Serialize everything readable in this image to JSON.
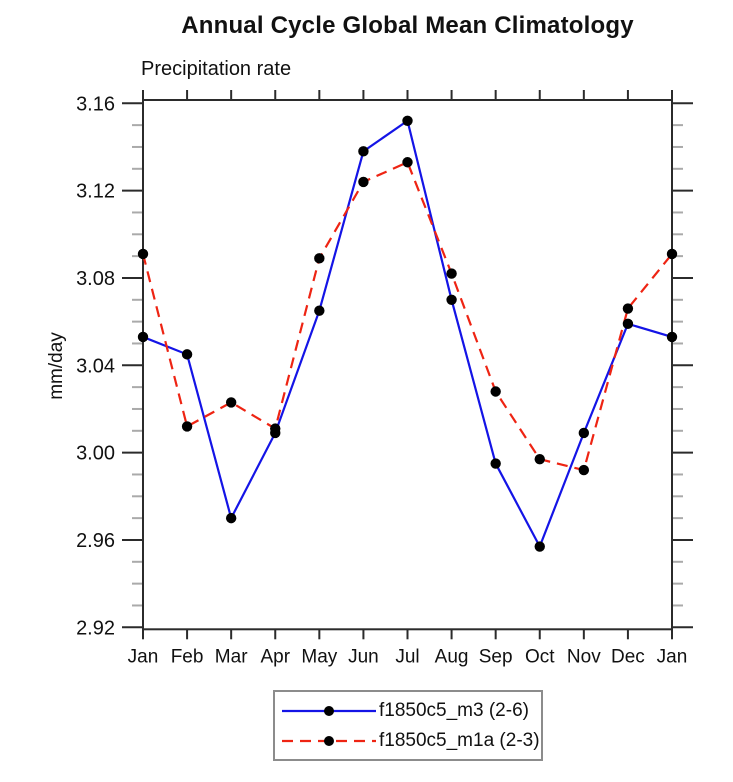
{
  "title": "Annual Cycle Global Mean Climatology",
  "subtitle": "Precipitation rate",
  "y_axis_label": "mm/day",
  "colors": {
    "axis": "#2b2b2b",
    "minor_tick": "#aaaaaa",
    "marker": "#000000",
    "legend_border": "#8c8c8c",
    "series_blue": "#1414e6",
    "series_red": "#ee2413"
  },
  "chart_data": {
    "type": "line",
    "title": "Annual Cycle Global Mean Climatology",
    "subtitle": "Precipitation rate",
    "ylabel": "mm/day",
    "xlabel": "",
    "categories": [
      "Jan",
      "Feb",
      "Mar",
      "Apr",
      "May",
      "Jun",
      "Jul",
      "Aug",
      "Sep",
      "Oct",
      "Nov",
      "Dec",
      "Jan"
    ],
    "series": [
      {
        "name": "f1850c5_m3 (2-6)",
        "color": "#1414e6",
        "line_style": "solid",
        "dasharray": "none",
        "marker": "filled-circle",
        "marker_color": "#000000",
        "values": [
          3.053,
          3.045,
          2.97,
          3.009,
          3.065,
          3.138,
          3.152,
          3.07,
          2.995,
          2.957,
          3.009,
          3.059,
          3.053
        ]
      },
      {
        "name": "f1850c5_m1a (2-3)",
        "color": "#ee2413",
        "line_style": "dashed",
        "dasharray": "11 7",
        "marker": "filled-circle",
        "marker_color": "#000000",
        "values": [
          3.091,
          3.012,
          3.023,
          3.011,
          3.089,
          3.124,
          3.133,
          3.082,
          3.028,
          2.997,
          2.992,
          3.066,
          3.091
        ]
      }
    ],
    "ylim": [
      2.919,
      3.162
    ],
    "ytick_major": [
      2.92,
      2.96,
      3.0,
      3.04,
      3.08,
      3.12,
      3.16
    ],
    "ytick_labels": [
      "2.92",
      "2.96",
      "3.00",
      "3.04",
      "3.08",
      "3.12",
      "3.16"
    ],
    "ytick_minor_step": 0.01,
    "grid": false,
    "legend_position": "bottom-center"
  },
  "legend": {
    "entries": [
      {
        "label": "f1850c5_m3 (2-6)"
      },
      {
        "label": "f1850c5_m1a (2-3)"
      }
    ]
  }
}
